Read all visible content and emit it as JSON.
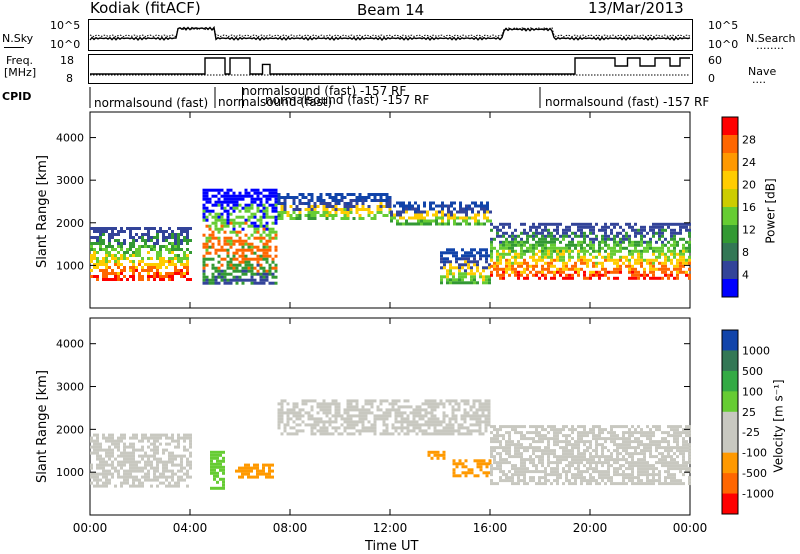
{
  "header": {
    "station": "Kodiak (fitACF)",
    "beam": "Beam 14",
    "date": "13/Mar/2013"
  },
  "noise_panel": {
    "left_label": "N.Sky",
    "right_label": "N.Search",
    "right_legend": "........",
    "ticks_left": [
      "10^5",
      "10^0"
    ],
    "ticks_right": [
      "10^5",
      "10^0"
    ]
  },
  "freq_panel": {
    "left_label_1": "Freq.",
    "left_label_2": "[MHz]",
    "right_label": "Nave",
    "right_legend": "....",
    "ticks_left": [
      "18",
      "8"
    ],
    "ticks_right": [
      "60",
      "0"
    ]
  },
  "cpid_panel": {
    "label": "CPID",
    "entries": [
      "normalsound (fast)",
      "normalsound (fast) -157 RF",
      "normalsound (fast)",
      "normalsound (fast) -157 RF",
      "normalsound (fast) -157 RF",
      "normalsound (fast) -157 RF"
    ]
  },
  "chart_data": [
    {
      "type": "heatmap",
      "name": "power",
      "ylabel": "Slant Range [km]",
      "yticks": [
        "1000",
        "2000",
        "3000",
        "4000"
      ],
      "ylim": [
        0,
        4600
      ],
      "colorbar_label": "Power [dB]",
      "colorbar_ticks": [
        "28",
        "24",
        "20",
        "16",
        "12",
        "8",
        "4"
      ],
      "colorbar_colors": [
        "#ff0000",
        "#ff6600",
        "#ff9900",
        "#ffcc00",
        "#cccc00",
        "#66cc33",
        "#339933",
        "#337755",
        "#334499",
        "#0000ff"
      ],
      "features": [
        {
          "t0": 0.0,
          "t1": 4.0,
          "r0": 700,
          "r1": 1900,
          "level": "strong"
        },
        {
          "t0": 4.5,
          "t1": 7.5,
          "r0": 600,
          "r1": 2800,
          "level": "mixed"
        },
        {
          "t0": 7.5,
          "t1": 12.0,
          "r0": 2100,
          "r1": 2700,
          "level": "medium"
        },
        {
          "t0": 12.0,
          "t1": 16.0,
          "r0": 2000,
          "r1": 2500,
          "level": "medium"
        },
        {
          "t0": 14.0,
          "t1": 16.0,
          "r0": 600,
          "r1": 1400,
          "level": "medium"
        },
        {
          "t0": 16.0,
          "t1": 24.0,
          "r0": 700,
          "r1": 2000,
          "level": "strong"
        }
      ]
    },
    {
      "type": "heatmap",
      "name": "velocity",
      "ylabel": "Slant Range [km]",
      "yticks": [
        "1000",
        "2000",
        "3000",
        "4000"
      ],
      "ylim": [
        0,
        4600
      ],
      "colorbar_label": "Velocity [m s⁻¹]",
      "colorbar_ticks": [
        "1000",
        "500",
        "100",
        "25",
        "-25",
        "-100",
        "-500",
        "-1000"
      ],
      "colorbar_colors": [
        "#1144aa",
        "#337755",
        "#33aa44",
        "#66cc33",
        "#c8c8c0",
        "#c8c8c0",
        "#ff9900",
        "#ff6600",
        "#ff0000"
      ],
      "features": [
        {
          "t0": 0.0,
          "t1": 4.0,
          "r0": 700,
          "r1": 1900,
          "color": "#c8c8c0"
        },
        {
          "t0": 4.8,
          "t1": 5.3,
          "r0": 600,
          "r1": 1500,
          "color": "#66cc33"
        },
        {
          "t0": 5.8,
          "t1": 7.3,
          "r0": 900,
          "r1": 1200,
          "color": "#ff9900"
        },
        {
          "t0": 7.5,
          "t1": 16.0,
          "r0": 1900,
          "r1": 2700,
          "color": "#c8c8c0"
        },
        {
          "t0": 13.5,
          "t1": 14.2,
          "r0": 1300,
          "r1": 1500,
          "color": "#ff9900"
        },
        {
          "t0": 14.5,
          "t1": 16.0,
          "r0": 900,
          "r1": 1300,
          "color": "#ff9900"
        },
        {
          "t0": 16.0,
          "t1": 24.0,
          "r0": 700,
          "r1": 2100,
          "color": "#c8c8c0"
        }
      ]
    }
  ],
  "xaxis": {
    "label": "Time UT",
    "ticks": [
      "00:00",
      "04:00",
      "08:00",
      "12:00",
      "16:00",
      "20:00",
      "00:00"
    ]
  }
}
